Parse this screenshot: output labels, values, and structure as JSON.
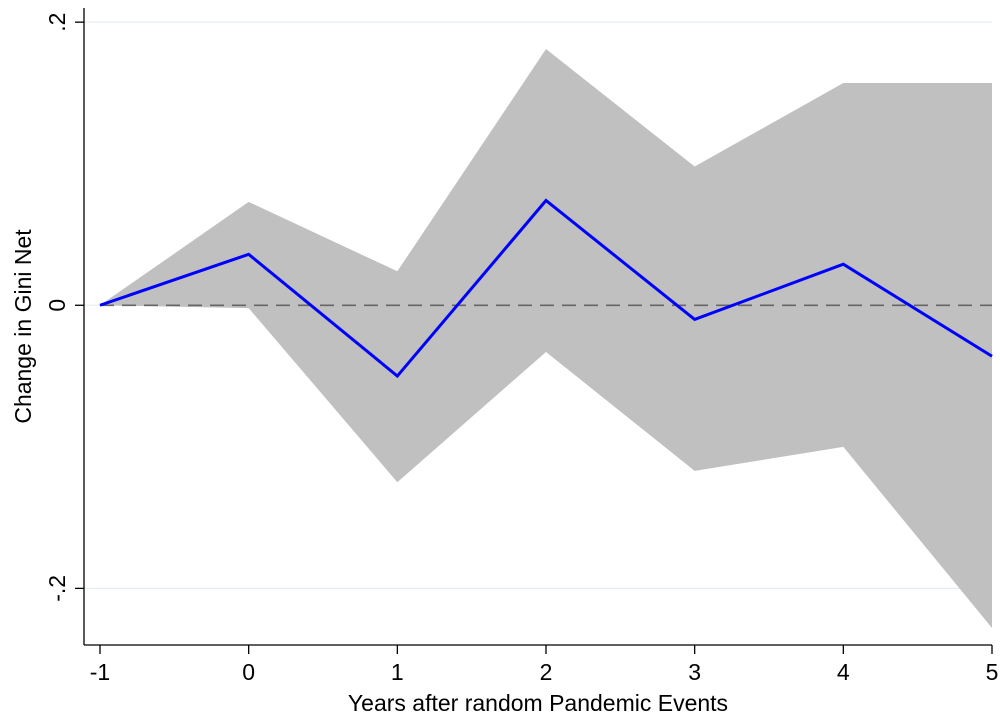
{
  "chart_data": {
    "type": "line",
    "title": "",
    "xlabel": "Years after random Pandemic Events",
    "ylabel": "Change in Gini Net",
    "x": [
      -1,
      0,
      1,
      2,
      3,
      4,
      5
    ],
    "series": [
      {
        "values": [
          0,
          0.036,
          -0.05,
          0.074,
          -0.01,
          0.029,
          -0.036
        ],
        "color": "#0000ff"
      }
    ],
    "confidence_band": {
      "lower": [
        0,
        -0.002,
        -0.125,
        -0.033,
        -0.117,
        -0.1,
        -0.228
      ],
      "upper": [
        0,
        0.073,
        0.024,
        0.181,
        0.098,
        0.157,
        0.157
      ],
      "color": "#c0c0c0"
    },
    "reference_line": {
      "y": 0,
      "style": "dashed",
      "color": "#666666"
    },
    "xlim": [
      -1,
      5
    ],
    "ylim": [
      -0.24,
      0.21
    ],
    "xticks": [
      -1,
      0,
      1,
      2,
      3,
      4,
      5
    ],
    "xtick_labels": [
      "-1",
      "0",
      "1",
      "2",
      "3",
      "4",
      "5"
    ],
    "yticks": [
      -0.2,
      0,
      0.2
    ],
    "ytick_labels": [
      "-.2",
      "0",
      ".2"
    ],
    "grid": "horizontal",
    "legend": "none"
  }
}
